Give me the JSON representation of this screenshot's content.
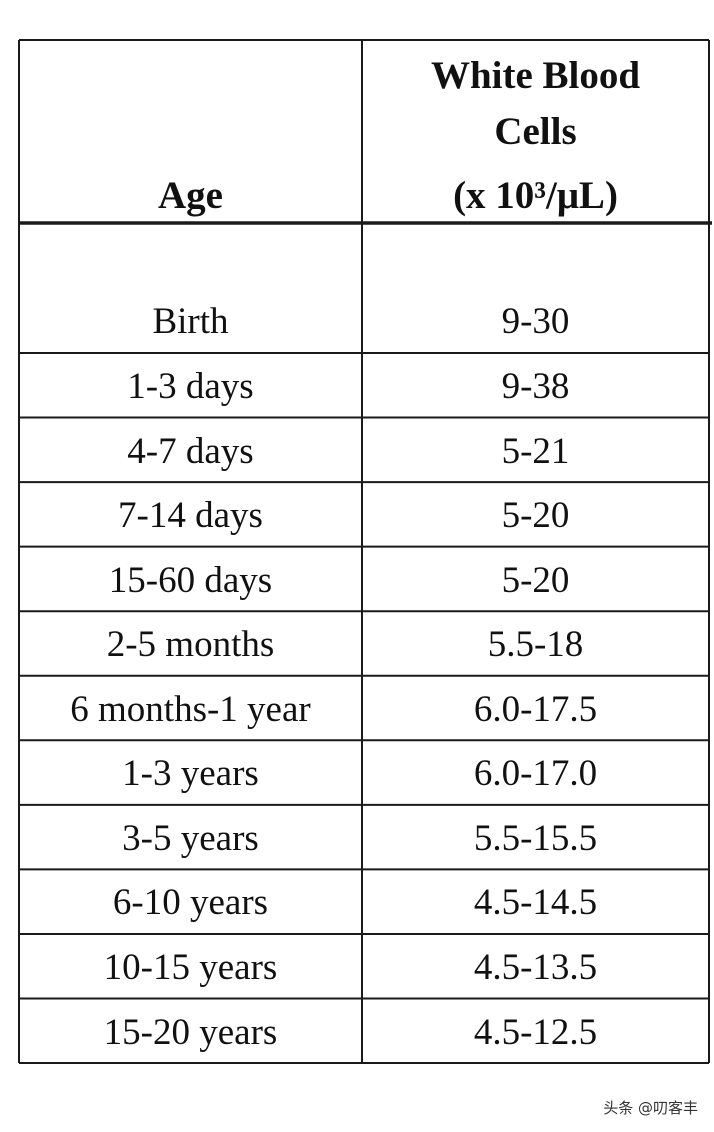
{
  "table": {
    "header": {
      "age": "Age",
      "wbc": [
        "White Blood",
        "Cells",
        "(x 10³/μL)"
      ]
    },
    "rows": [
      [
        "Birth",
        "9-30"
      ],
      [
        "1-3 days",
        "9-38"
      ],
      [
        "4-7 days",
        "5-21"
      ],
      [
        "7-14 days",
        "5-20"
      ],
      [
        "15-60 days",
        "5-20"
      ],
      [
        "2-5 months",
        "5.5-18"
      ],
      [
        "6 months-1 year",
        "6.0-17.5"
      ],
      [
        "1-3 years",
        "6.0-17.0"
      ],
      [
        "3-5 years",
        "5.5-15.5"
      ],
      [
        "6-10 years",
        "4.5-14.5"
      ],
      [
        "10-15 years",
        "4.5-13.5"
      ],
      [
        "15-20 years",
        "4.5-12.5"
      ]
    ]
  },
  "watermark": "头条 @叨客丰"
}
